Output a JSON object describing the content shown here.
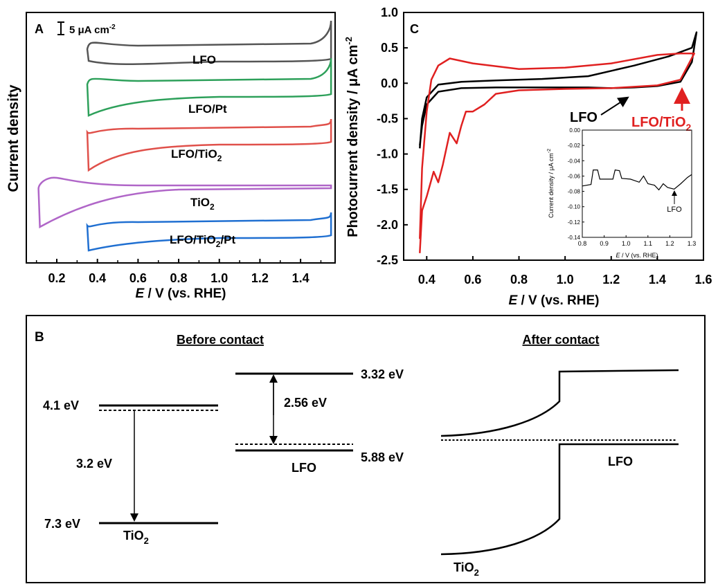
{
  "chart_data": [
    {
      "panel": "A",
      "type": "line",
      "scale_bar_label": "5 μA cm",
      "scale_bar_sup": "-2",
      "scale_bar_value": 5,
      "xlabel_italic": "E",
      "xlabel_rest": " / V (vs. RHE)",
      "ylabel": "Current density",
      "xlim": [
        0.05,
        1.57
      ],
      "xticks": [
        "0.2",
        "0.4",
        "0.6",
        "0.8",
        "1.0",
        "1.2",
        "1.4"
      ],
      "xtick_values": [
        0.2,
        0.4,
        0.6,
        0.8,
        1.0,
        1.2,
        1.4
      ],
      "y_scale": "arbitrary, curves vertically offset",
      "series": [
        {
          "name": "LFO",
          "label_main": "LFO",
          "label_sub": "",
          "label_tail": "",
          "color": "#555555",
          "x_start": 0.35,
          "x_end": 1.55
        },
        {
          "name": "LFO/Pt",
          "label_main": "LFO/Pt",
          "label_sub": "",
          "label_tail": "",
          "color": "#2da05a",
          "x_start": 0.35,
          "x_end": 1.55
        },
        {
          "name": "LFO/TiO2",
          "label_main": "LFO/TiO",
          "label_sub": "2",
          "label_tail": "",
          "color": "#e0504a",
          "x_start": 0.35,
          "x_end": 1.55
        },
        {
          "name": "TiO2",
          "label_main": "TiO",
          "label_sub": "2",
          "label_tail": "",
          "color": "#b066c8",
          "x_start": 0.11,
          "x_end": 1.55
        },
        {
          "name": "LFO/TiO2/Pt",
          "label_main": "LFO/TiO",
          "label_sub": "2",
          "label_tail": "/Pt",
          "color": "#1f6fd1",
          "x_start": 0.35,
          "x_end": 1.55
        }
      ]
    },
    {
      "panel": "C",
      "type": "line",
      "xlabel_italic": "E",
      "xlabel_rest": " / V (vs. RHE)",
      "ylabel": "Photocurrent density  / μA cm",
      "ylabel_sup": "-2",
      "xlim": [
        0.4,
        1.6
      ],
      "ylim": [
        -2.5,
        1.0
      ],
      "xticks": [
        "0.4",
        "0.6",
        "0.8",
        "1.0",
        "1.2",
        "1.4",
        "1.6"
      ],
      "yticks": [
        "1.0",
        "0.5",
        "0.0",
        "-0.5",
        "-1.0",
        "-1.5",
        "-2.0",
        "-2.5"
      ],
      "series": [
        {
          "name": "LFO",
          "color": "#000000",
          "forward": [
            [
              0.37,
              -0.88
            ],
            [
              0.38,
              -0.6
            ],
            [
              0.4,
              -0.3
            ],
            [
              0.45,
              -0.12
            ],
            [
              0.55,
              -0.07
            ],
            [
              0.7,
              -0.06
            ],
            [
              0.9,
              -0.06
            ],
            [
              1.1,
              -0.06
            ],
            [
              1.2,
              -0.07
            ],
            [
              1.3,
              -0.06
            ],
            [
              1.4,
              -0.04
            ],
            [
              1.5,
              0.02
            ],
            [
              1.55,
              0.3
            ],
            [
              1.57,
              0.72
            ]
          ],
          "reverse": [
            [
              1.57,
              0.72
            ],
            [
              1.55,
              0.5
            ],
            [
              1.45,
              0.38
            ],
            [
              1.3,
              0.25
            ],
            [
              1.1,
              0.1
            ],
            [
              0.9,
              0.06
            ],
            [
              0.7,
              0.04
            ],
            [
              0.55,
              0.02
            ],
            [
              0.45,
              -0.02
            ],
            [
              0.4,
              -0.2
            ],
            [
              0.38,
              -0.5
            ],
            [
              0.37,
              -0.92
            ]
          ]
        },
        {
          "name": "LFO/TiO2",
          "color": "#e02020",
          "forward": [
            [
              0.37,
              -2.4
            ],
            [
              0.38,
              -1.8
            ],
            [
              0.4,
              -1.6
            ],
            [
              0.43,
              -1.25
            ],
            [
              0.45,
              -1.4
            ],
            [
              0.47,
              -1.15
            ],
            [
              0.5,
              -0.7
            ],
            [
              0.53,
              -0.85
            ],
            [
              0.55,
              -0.6
            ],
            [
              0.57,
              -0.4
            ],
            [
              0.6,
              -0.4
            ],
            [
              0.65,
              -0.3
            ],
            [
              0.7,
              -0.15
            ],
            [
              0.8,
              -0.1
            ],
            [
              1.0,
              -0.08
            ],
            [
              1.2,
              -0.07
            ],
            [
              1.4,
              -0.03
            ],
            [
              1.5,
              0.05
            ],
            [
              1.56,
              0.42
            ]
          ],
          "reverse": [
            [
              1.56,
              0.42
            ],
            [
              1.5,
              0.42
            ],
            [
              1.4,
              0.4
            ],
            [
              1.2,
              0.28
            ],
            [
              1.0,
              0.22
            ],
            [
              0.8,
              0.2
            ],
            [
              0.6,
              0.28
            ],
            [
              0.5,
              0.35
            ],
            [
              0.45,
              0.25
            ],
            [
              0.42,
              0.05
            ],
            [
              0.4,
              -0.4
            ],
            [
              0.38,
              -1.2
            ],
            [
              0.37,
              -2.2
            ]
          ]
        }
      ],
      "annotations": [
        {
          "text": "LFO",
          "sub": "",
          "tail": "",
          "color": "#000000"
        },
        {
          "text": "LFO/TiO",
          "sub": "2",
          "tail": "",
          "color": "#e02020"
        }
      ],
      "inset": {
        "type": "line",
        "xlabel_italic": "E",
        "xlabel_rest": " / V (vs. RHE)",
        "ylabel": "Current density / μA cm",
        "ylabel_sup": "-2",
        "xlim": [
          0.8,
          1.3
        ],
        "ylim": [
          -0.14,
          0.0
        ],
        "xticks": [
          "0.8",
          "0.9",
          "1.0",
          "1.1",
          "1.2",
          "1.3"
        ],
        "yticks": [
          "0.00",
          "-0.02",
          "-0.04",
          "-0.06",
          "-0.08",
          "-0.10",
          "-0.12",
          "-0.14"
        ],
        "annotation": "LFO",
        "series": [
          {
            "name": "LFO",
            "color": "#000000",
            "points": [
              [
                0.8,
                -0.073
              ],
              [
                0.84,
                -0.071
              ],
              [
                0.85,
                -0.052
              ],
              [
                0.87,
                -0.052
              ],
              [
                0.88,
                -0.064
              ],
              [
                0.94,
                -0.064
              ],
              [
                0.95,
                -0.052
              ],
              [
                0.97,
                -0.053
              ],
              [
                0.98,
                -0.063
              ],
              [
                1.02,
                -0.064
              ],
              [
                1.04,
                -0.066
              ],
              [
                1.06,
                -0.068
              ],
              [
                1.08,
                -0.06
              ],
              [
                1.1,
                -0.07
              ],
              [
                1.13,
                -0.072
              ],
              [
                1.15,
                -0.078
              ],
              [
                1.17,
                -0.07
              ],
              [
                1.19,
                -0.075
              ],
              [
                1.22,
                -0.077
              ],
              [
                1.25,
                -0.07
              ],
              [
                1.28,
                -0.062
              ],
              [
                1.3,
                -0.058
              ]
            ]
          }
        ]
      }
    }
  ],
  "diagram_b": {
    "panel_label": "B",
    "before_title": "Before contact",
    "after_title": "After contact",
    "tio2_cb": "4.1 eV",
    "tio2_vb": "7.3 eV",
    "tio2_gap": "3.2 eV",
    "tio2_label_main": "TiO",
    "tio2_label_sub": "2",
    "lfo_cb": "3.32 eV",
    "lfo_vb": "5.88 eV",
    "lfo_gap": "2.56 eV",
    "lfo_label": "LFO",
    "after_lfo_label": "LFO",
    "after_tio2_label_main": "TiO",
    "after_tio2_label_sub": "2"
  }
}
